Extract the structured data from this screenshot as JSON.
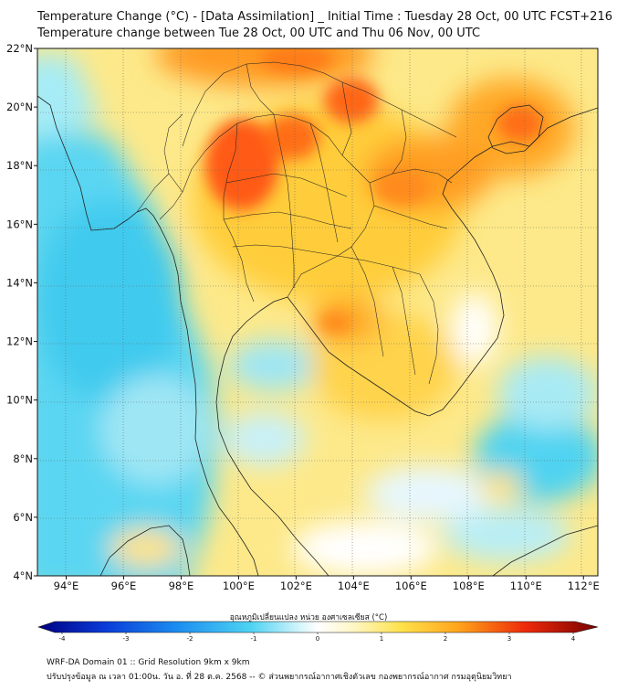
{
  "title_line1": "Temperature Change (°C) - [Data Assimilation] _ Initial Time : Tuesday 28 Oct, 00 UTC FCST+216",
  "title_line2": "Temperature change between Tue 28 Oct, 00 UTC and Thu 06 Nov, 00 UTC",
  "x_ticks": [
    "94°E",
    "96°E",
    "98°E",
    "100°E",
    "102°E",
    "104°E",
    "106°E",
    "108°E",
    "110°E",
    "112°E"
  ],
  "y_ticks": [
    "22°N",
    "20°N",
    "18°N",
    "16°N",
    "14°N",
    "12°N",
    "10°N",
    "8°N",
    "6°N",
    "4°N"
  ],
  "colorbar": {
    "title": "อุณหภูมิเปลี่ยนแปลง หน่วย องศาเซลเซียส (°C)",
    "ticks": [
      "-4",
      "-3",
      "-2",
      "-1",
      "0",
      "1",
      "2",
      "3",
      "4"
    ],
    "min": -4,
    "max": 4
  },
  "footer_line1": "WRF-DA Domain 01 :: Grid Resolution 9km x 9km",
  "footer_line2": "ปรับปรุงข้อมูล ณ เวลา 01:00น. วัน อ. ที่ 28 ต.ค. 2568 -- © ส่วนพยากรณ์อากาศเชิงตัวเลข กองพยากรณ์อากาศ กรมอุตุนิยมวิทยา",
  "map_extent": {
    "lon": [
      93,
      112.5
    ],
    "lat": [
      4,
      22
    ]
  },
  "colors": {
    "cold": "#33ccf0",
    "neutral": "#ffffff",
    "warm": "#ffd24a",
    "hot": "#ff5a14"
  }
}
